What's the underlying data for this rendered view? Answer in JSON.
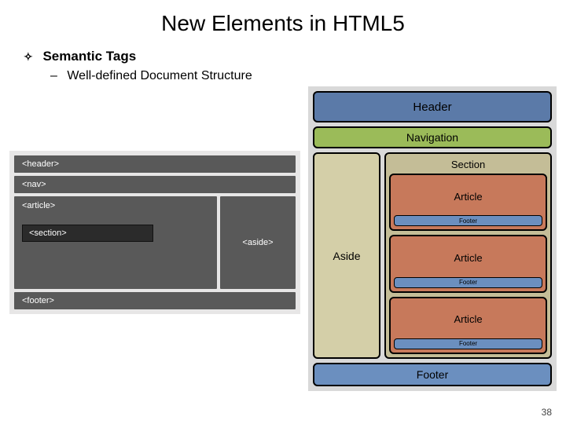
{
  "title": "New Elements in HTML5",
  "bullets": {
    "level1": "Semantic Tags",
    "level2": "Well-defined Document Structure"
  },
  "leftDiagram": {
    "background": "#e7e6e6",
    "boxColor": "#595959",
    "sectionBoxColor": "#2b2b2b",
    "textColor": "#ffffff",
    "items": {
      "header": "<header>",
      "nav": "<nav>",
      "article": "<article>",
      "section": "<section>",
      "aside": "<aside>",
      "footer": "<footer>"
    }
  },
  "rightDiagram": {
    "background": "#d9d9d9",
    "borderColor": "#000000",
    "header": {
      "label": "Header",
      "color": "#5b7aa8",
      "fontsize": 15
    },
    "nav": {
      "label": "Navigation",
      "color": "#9bbb59",
      "fontsize": 14
    },
    "aside": {
      "label": "Aside",
      "color": "#d4cfa8",
      "fontsize": 14
    },
    "section": {
      "label": "Section",
      "color": "#c4bd97",
      "fontsize": 13,
      "articles": [
        {
          "label": "Article",
          "color": "#c7795b",
          "footerLabel": "Footer",
          "footerColor": "#6b8fbf"
        },
        {
          "label": "Article",
          "color": "#c7795b",
          "footerLabel": "Footer",
          "footerColor": "#6b8fbf"
        },
        {
          "label": "Article",
          "color": "#c7795b",
          "footerLabel": "Footer",
          "footerColor": "#6b8fbf"
        }
      ]
    },
    "footer": {
      "label": "Footer",
      "color": "#6b8fbf",
      "fontsize": 14
    }
  },
  "pageNumber": "38"
}
